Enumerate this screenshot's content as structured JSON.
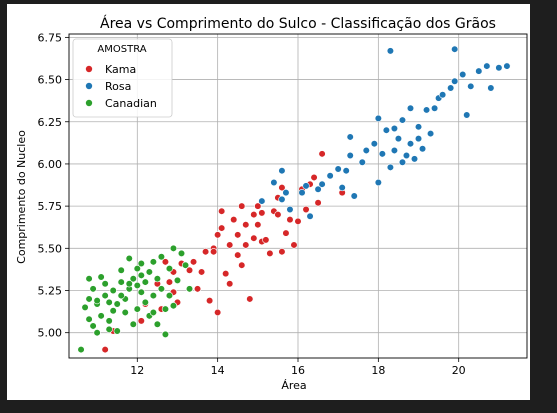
{
  "chart_data": {
    "type": "scatter",
    "title": "Área vs Comprimento do Sulco - Classificação dos Grãos",
    "xlabel": "Área",
    "ylabel": "Comprimento do Nucleo",
    "xlim": [
      10.3,
      21.7
    ],
    "ylim": [
      4.85,
      6.77
    ],
    "xticks": [
      12,
      14,
      16,
      18,
      20
    ],
    "yticks": [
      5.0,
      5.25,
      5.5,
      5.75,
      6.0,
      6.25,
      6.5,
      6.75
    ],
    "xtick_labels": [
      "12",
      "14",
      "16",
      "18",
      "20"
    ],
    "ytick_labels": [
      "5.00",
      "5.25",
      "5.50",
      "5.75",
      "6.00",
      "6.25",
      "6.50",
      "6.75"
    ],
    "grid": true,
    "legend": {
      "title": "AMOSTRA",
      "placement": "top-left"
    },
    "series": [
      {
        "name": "Kama",
        "color": "#d62728",
        "points": [
          [
            11.2,
            4.9
          ],
          [
            11.4,
            5.01
          ],
          [
            12.1,
            5.07
          ],
          [
            12.2,
            5.17
          ],
          [
            12.4,
            5.22
          ],
          [
            12.5,
            5.29
          ],
          [
            12.6,
            5.14
          ],
          [
            12.7,
            5.42
          ],
          [
            12.8,
            5.3
          ],
          [
            12.9,
            5.24
          ],
          [
            13.0,
            5.18
          ],
          [
            13.1,
            5.41
          ],
          [
            13.3,
            5.37
          ],
          [
            13.4,
            5.42
          ],
          [
            13.5,
            5.26
          ],
          [
            13.6,
            5.36
          ],
          [
            13.7,
            5.48
          ],
          [
            13.8,
            5.19
          ],
          [
            13.9,
            5.5
          ],
          [
            14.0,
            5.12
          ],
          [
            14.0,
            5.58
          ],
          [
            14.1,
            5.62
          ],
          [
            14.1,
            5.72
          ],
          [
            14.2,
            5.35
          ],
          [
            14.3,
            5.29
          ],
          [
            14.3,
            5.52
          ],
          [
            14.4,
            5.67
          ],
          [
            14.5,
            5.58
          ],
          [
            14.5,
            5.46
          ],
          [
            14.6,
            5.75
          ],
          [
            14.7,
            5.52
          ],
          [
            14.7,
            5.64
          ],
          [
            14.8,
            5.2
          ],
          [
            14.9,
            5.56
          ],
          [
            14.9,
            5.7
          ],
          [
            15.0,
            5.64
          ],
          [
            15.1,
            5.54
          ],
          [
            15.1,
            5.71
          ],
          [
            15.2,
            5.55
          ],
          [
            15.3,
            5.47
          ],
          [
            15.4,
            5.72
          ],
          [
            15.5,
            5.7
          ],
          [
            15.5,
            5.8
          ],
          [
            15.6,
            5.48
          ],
          [
            15.6,
            5.86
          ],
          [
            15.7,
            5.59
          ],
          [
            15.8,
            5.67
          ],
          [
            15.9,
            5.52
          ],
          [
            16.0,
            5.66
          ],
          [
            16.1,
            5.85
          ],
          [
            16.2,
            5.73
          ],
          [
            16.3,
            5.88
          ],
          [
            16.4,
            5.92
          ],
          [
            16.5,
            5.77
          ],
          [
            16.6,
            6.06
          ],
          [
            17.1,
            5.83
          ],
          [
            13.9,
            5.48
          ],
          [
            14.6,
            5.4
          ],
          [
            12.9,
            5.36
          ],
          [
            15.0,
            5.75
          ]
        ]
      },
      {
        "name": "Rosa",
        "color": "#1f77b4",
        "points": [
          [
            15.4,
            5.89
          ],
          [
            15.6,
            5.79
          ],
          [
            15.7,
            5.83
          ],
          [
            15.8,
            5.73
          ],
          [
            16.1,
            5.83
          ],
          [
            16.2,
            5.87
          ],
          [
            16.3,
            5.69
          ],
          [
            16.5,
            5.85
          ],
          [
            16.6,
            5.88
          ],
          [
            16.8,
            5.93
          ],
          [
            17.1,
            5.86
          ],
          [
            17.2,
            5.96
          ],
          [
            17.3,
            6.05
          ],
          [
            17.3,
            6.16
          ],
          [
            17.4,
            5.81
          ],
          [
            17.6,
            6.01
          ],
          [
            17.7,
            6.08
          ],
          [
            17.9,
            6.12
          ],
          [
            18.0,
            5.89
          ],
          [
            18.1,
            6.06
          ],
          [
            18.2,
            6.2
          ],
          [
            18.3,
            5.98
          ],
          [
            18.4,
            6.08
          ],
          [
            18.5,
            6.15
          ],
          [
            18.6,
            6.26
          ],
          [
            18.7,
            6.05
          ],
          [
            18.8,
            6.12
          ],
          [
            18.9,
            6.03
          ],
          [
            19.0,
            6.22
          ],
          [
            19.1,
            6.09
          ],
          [
            19.2,
            6.32
          ],
          [
            19.3,
            6.18
          ],
          [
            19.4,
            6.33
          ],
          [
            19.5,
            6.39
          ],
          [
            19.6,
            6.41
          ],
          [
            19.8,
            6.45
          ],
          [
            19.9,
            6.49
          ],
          [
            20.1,
            6.53
          ],
          [
            20.2,
            6.29
          ],
          [
            20.3,
            6.46
          ],
          [
            20.5,
            6.55
          ],
          [
            20.7,
            6.58
          ],
          [
            20.8,
            6.45
          ],
          [
            21.0,
            6.57
          ],
          [
            21.2,
            6.58
          ],
          [
            18.3,
            6.67
          ],
          [
            19.9,
            6.68
          ],
          [
            18.0,
            6.27
          ],
          [
            18.6,
            6.01
          ],
          [
            17.0,
            5.97
          ],
          [
            18.8,
            6.33
          ],
          [
            19.0,
            6.15
          ],
          [
            18.4,
            6.21
          ],
          [
            15.1,
            5.78
          ],
          [
            15.6,
            5.96
          ]
        ]
      },
      {
        "name": "Canadian",
        "color": "#2ca02c",
        "points": [
          [
            10.6,
            4.9
          ],
          [
            10.7,
            5.15
          ],
          [
            10.8,
            5.2
          ],
          [
            10.8,
            5.32
          ],
          [
            10.9,
            5.26
          ],
          [
            10.9,
            5.04
          ],
          [
            11.0,
            5.0
          ],
          [
            11.0,
            5.17
          ],
          [
            11.1,
            5.33
          ],
          [
            11.1,
            5.1
          ],
          [
            11.2,
            5.22
          ],
          [
            11.2,
            5.29
          ],
          [
            11.3,
            5.07
          ],
          [
            11.3,
            5.18
          ],
          [
            11.4,
            5.13
          ],
          [
            11.4,
            5.25
          ],
          [
            11.5,
            5.01
          ],
          [
            11.5,
            5.17
          ],
          [
            11.6,
            5.3
          ],
          [
            11.6,
            5.37
          ],
          [
            11.7,
            5.12
          ],
          [
            11.7,
            5.2
          ],
          [
            11.8,
            5.44
          ],
          [
            11.8,
            5.26
          ],
          [
            11.9,
            5.05
          ],
          [
            11.9,
            5.32
          ],
          [
            12.0,
            5.14
          ],
          [
            12.0,
            5.38
          ],
          [
            12.1,
            5.41
          ],
          [
            12.1,
            5.24
          ],
          [
            12.2,
            5.18
          ],
          [
            12.2,
            5.3
          ],
          [
            12.3,
            5.1
          ],
          [
            12.3,
            5.36
          ],
          [
            12.4,
            5.22
          ],
          [
            12.4,
            5.42
          ],
          [
            12.5,
            5.05
          ],
          [
            12.5,
            5.32
          ],
          [
            12.6,
            5.45
          ],
          [
            12.6,
            5.26
          ],
          [
            12.7,
            5.14
          ],
          [
            12.7,
            4.99
          ],
          [
            12.8,
            5.38
          ],
          [
            12.8,
            5.22
          ],
          [
            12.9,
            5.5
          ],
          [
            12.9,
            5.16
          ],
          [
            13.0,
            5.31
          ],
          [
            13.1,
            5.47
          ],
          [
            13.2,
            5.4
          ],
          [
            13.3,
            5.26
          ],
          [
            11.0,
            5.19
          ],
          [
            11.3,
            5.02
          ],
          [
            11.8,
            5.29
          ],
          [
            12.1,
            5.34
          ],
          [
            12.4,
            5.12
          ],
          [
            10.8,
            5.08
          ],
          [
            11.6,
            5.22
          ],
          [
            12.0,
            5.28
          ]
        ]
      }
    ]
  }
}
